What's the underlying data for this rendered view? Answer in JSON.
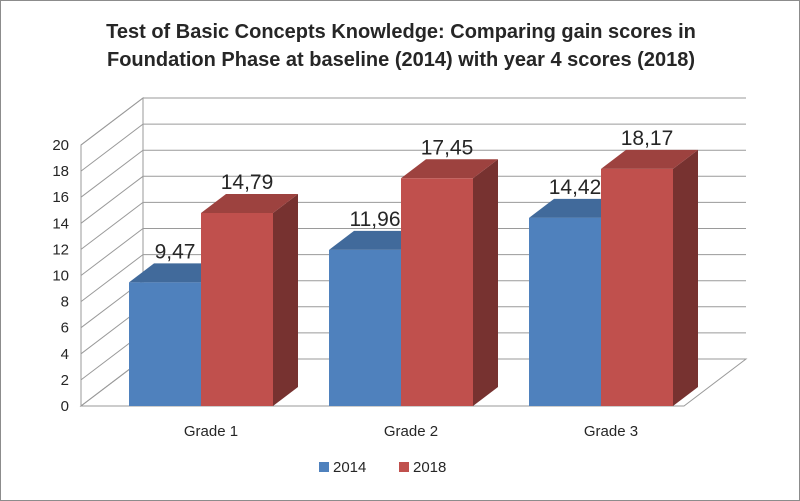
{
  "chart_data": {
    "type": "bar",
    "title_lines": [
      "Test of Basic Concepts Knowledge: Comparing gain scores in",
      "Foundation Phase at baseline (2014) with year 4 scores (2018)"
    ],
    "categories": [
      "Grade 1",
      "Grade 2",
      "Grade 3"
    ],
    "series": [
      {
        "name": "2014",
        "values": [
          9.47,
          11.96,
          14.42
        ],
        "labels": [
          "9,47",
          "11,96",
          "14,42"
        ],
        "color": "#4f81bd"
      },
      {
        "name": "2018",
        "values": [
          14.79,
          17.45,
          18.17
        ],
        "labels": [
          "14,79",
          "17,45",
          "18,17"
        ],
        "color": "#c0504d"
      }
    ],
    "yticks": [
      "0",
      "2",
      "4",
      "6",
      "8",
      "10",
      "12",
      "14",
      "16",
      "18",
      "20"
    ],
    "ylim": [
      0,
      20
    ],
    "grid": true,
    "legend_position": "bottom",
    "style": "3d-clustered-column"
  }
}
